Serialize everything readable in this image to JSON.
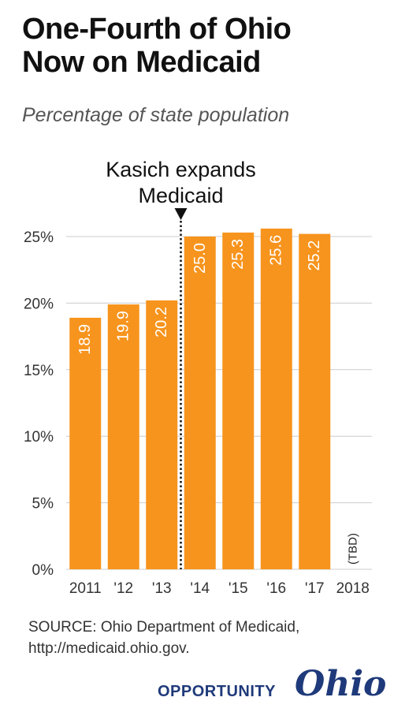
{
  "title_lines": [
    "One-Fourth of Ohio",
    "Now on Medicaid"
  ],
  "subtitle": "Percentage of state population",
  "annotation": {
    "lines": [
      "Kasich expands",
      "Medicaid"
    ],
    "after_category": "'13"
  },
  "source_lines": [
    "SOURCE: Ohio Department of Medicaid,",
    "http://medicaid.ohio.gov."
  ],
  "brand": {
    "word": "OPPORTUNITY",
    "script": "Ohio"
  },
  "colors": {
    "bar": "#F7941D",
    "bar_label": "#ffffff",
    "text": "#333333",
    "grid": "#cccccc",
    "brand": "#1f3a7a"
  },
  "chart_data": {
    "type": "bar",
    "title": "",
    "xlabel": "",
    "ylabel": "",
    "categories": [
      "2011",
      "'12",
      "'13",
      "'14",
      "'15",
      "'16",
      "'17",
      "2018"
    ],
    "values": [
      18.9,
      19.9,
      20.2,
      25.0,
      25.3,
      25.6,
      25.2,
      null
    ],
    "value_labels": [
      "18.9",
      "19.9",
      "20.2",
      "25.0",
      "25.3",
      "25.6",
      "25.2",
      "(TBD)"
    ],
    "yticks": [
      0,
      5,
      10,
      15,
      20,
      25
    ],
    "ytick_labels": [
      "0%",
      "5%",
      "10%",
      "15%",
      "20%",
      "25%"
    ],
    "ylim": [
      0,
      25
    ],
    "grid": true
  }
}
